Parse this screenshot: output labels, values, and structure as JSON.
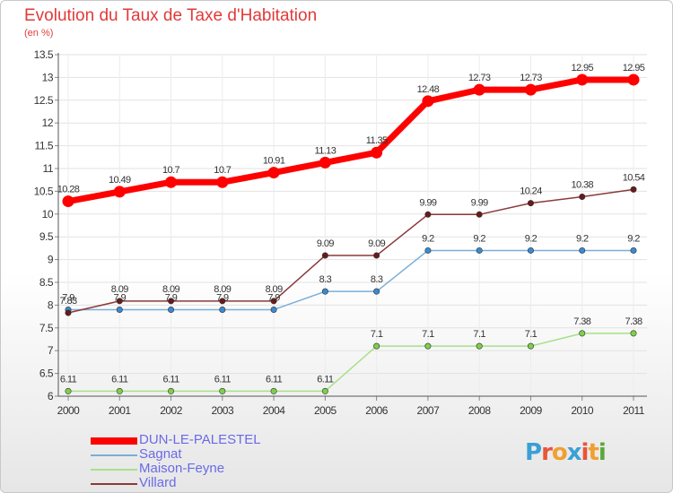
{
  "header": {
    "title": "Evolution du Taux de Taxe d'Habitation",
    "subtitle": "(en %)"
  },
  "logo": {
    "text": "Proxiti",
    "letter_colors": [
      "#3aa0d6",
      "#e8553a",
      "#f0a030",
      "#3aa0d6",
      "#e8553a",
      "#f0a030",
      "#5aa83a"
    ]
  },
  "chart_data": {
    "type": "line",
    "title": "Evolution du Taux de Taxe d'Habitation",
    "subtitle": "(en %)",
    "categories": [
      "2000",
      "2001",
      "2002",
      "2003",
      "2004",
      "2005",
      "2006",
      "2007",
      "2008",
      "2009",
      "2010",
      "2011"
    ],
    "ylim": [
      6,
      13.5
    ],
    "yticks": [
      6,
      6.5,
      7,
      7.5,
      8,
      8.5,
      9,
      9.5,
      10,
      10.5,
      11,
      11.5,
      12,
      12.5,
      13,
      13.5
    ],
    "ytick_labels": [
      "6",
      "6.5",
      "7",
      "7.5",
      "8",
      "8.5",
      "9",
      "9.5",
      "10",
      "10.5",
      "11",
      "11.5",
      "12",
      "12.5",
      "13",
      "13.5"
    ],
    "grid": true,
    "legend_position": "bottom-left",
    "series": [
      {
        "name": "DUN-LE-PALESTEL",
        "color": "#ff0000",
        "marker_color": "#ff0000",
        "emphasis": true,
        "values": [
          10.28,
          10.49,
          10.7,
          10.7,
          10.91,
          11.13,
          11.35,
          12.48,
          12.73,
          12.73,
          12.95,
          12.95
        ],
        "labels": [
          "10.28",
          "10.49",
          "10.7",
          "10.7",
          "10.91",
          "11.13",
          "11.35",
          "12.48",
          "12.73",
          "12.73",
          "12.95",
          "12.95"
        ]
      },
      {
        "name": "Sagnat",
        "color": "#7aaed8",
        "marker_color": "#3a8ad0",
        "emphasis": false,
        "values": [
          7.9,
          7.9,
          7.9,
          7.9,
          7.9,
          8.3,
          8.3,
          9.2,
          9.2,
          9.2,
          9.2,
          9.2
        ],
        "labels": [
          "7.9",
          "7.9",
          "7.9",
          "7.9",
          "7.9",
          "8.3",
          "8.3",
          "9.2",
          "9.2",
          "9.2",
          "9.2",
          "9.2"
        ]
      },
      {
        "name": "Maison-Feyne",
        "color": "#a8e08a",
        "marker_color": "#7ed04a",
        "emphasis": false,
        "values": [
          6.11,
          6.11,
          6.11,
          6.11,
          6.11,
          6.11,
          7.1,
          7.1,
          7.1,
          7.1,
          7.38,
          7.38
        ],
        "labels": [
          "6.11",
          "6.11",
          "6.11",
          "6.11",
          "6.11",
          "6.11",
          "7.1",
          "7.1",
          "7.1",
          "7.1",
          "7.38",
          "7.38"
        ]
      },
      {
        "name": "Villard",
        "color": "#8a3a3a",
        "marker_color": "#6a1a1a",
        "emphasis": false,
        "values": [
          7.83,
          8.09,
          8.09,
          8.09,
          8.09,
          9.09,
          9.09,
          9.99,
          9.99,
          10.24,
          10.38,
          10.54
        ],
        "labels": [
          "7.83",
          "8.09",
          "8.09",
          "8.09",
          "8.09",
          "9.09",
          "9.09",
          "9.99",
          "9.99",
          "10.24",
          "10.38",
          "10.54"
        ]
      }
    ]
  }
}
